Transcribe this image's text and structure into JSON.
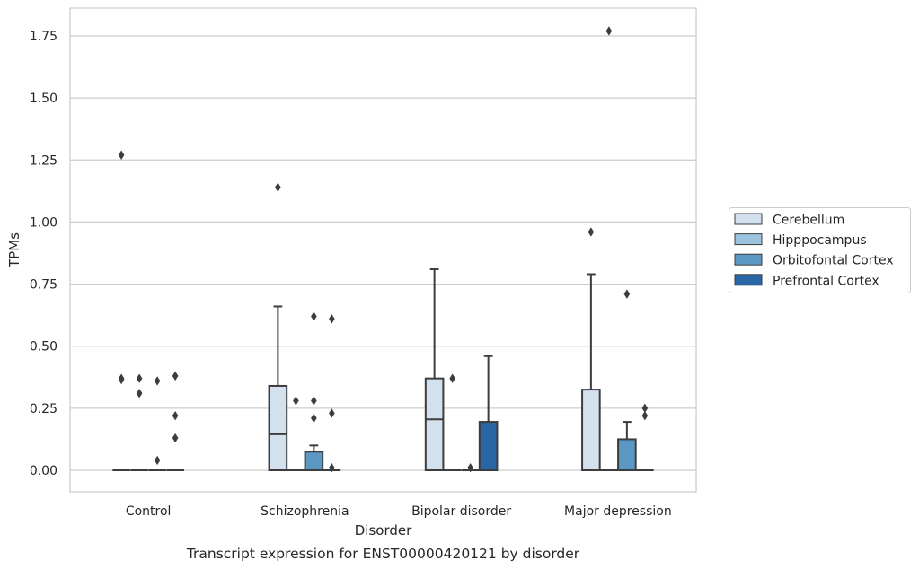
{
  "chart_data": {
    "type": "box",
    "title": "",
    "caption": "Transcript expression for ENST00000420121 by disorder",
    "xlabel": "Disorder",
    "ylabel": "TPMs",
    "ylim": [
      -0.085,
      1.86
    ],
    "yticks": [
      0.0,
      0.25,
      0.5,
      0.75,
      1.0,
      1.25,
      1.5,
      1.75
    ],
    "ytick_labels": [
      "0.00",
      "0.25",
      "0.50",
      "0.75",
      "1.00",
      "1.25",
      "1.50",
      "1.75"
    ],
    "grid": true,
    "legend_position": "right",
    "categories": [
      "Control",
      "Schizophrenia",
      "Bipolar disorder",
      "Major depression"
    ],
    "series": [
      {
        "name": "Cerebellum",
        "color": "#d3e1ef",
        "boxes": [
          {
            "min": 0,
            "q1": 0,
            "median": 0,
            "q3": 0,
            "max": 0,
            "outliers": [
              1.27,
              0.37,
              0.365
            ]
          },
          {
            "min": 0,
            "q1": 0,
            "median": 0.145,
            "q3": 0.34,
            "max": 0.66,
            "outliers": [
              1.14
            ]
          },
          {
            "min": 0,
            "q1": 0,
            "median": 0.205,
            "q3": 0.37,
            "max": 0.81,
            "outliers": []
          },
          {
            "min": 0,
            "q1": 0,
            "median": 0,
            "q3": 0.325,
            "max": 0.79,
            "outliers": [
              0.96
            ]
          }
        ]
      },
      {
        "name": "Hipppocampus",
        "color": "#9cc3de",
        "boxes": [
          {
            "min": 0,
            "q1": 0,
            "median": 0,
            "q3": 0,
            "max": 0,
            "outliers": [
              0.37,
              0.31
            ]
          },
          {
            "min": 0,
            "q1": 0,
            "median": 0,
            "q3": 0,
            "max": 0,
            "outliers": [
              0.28
            ]
          },
          {
            "min": 0,
            "q1": 0,
            "median": 0,
            "q3": 0,
            "max": 0,
            "outliers": [
              0.37
            ]
          },
          {
            "min": 0,
            "q1": 0,
            "median": 0,
            "q3": 0,
            "max": 0,
            "outliers": [
              1.77
            ]
          }
        ]
      },
      {
        "name": "Orbitofontal Cortex",
        "color": "#5a97c3",
        "boxes": [
          {
            "min": 0,
            "q1": 0,
            "median": 0,
            "q3": 0,
            "max": 0,
            "outliers": [
              0.36,
              0.04
            ]
          },
          {
            "min": 0,
            "q1": 0,
            "median": 0,
            "q3": 0.075,
            "max": 0.1,
            "outliers": [
              0.62,
              0.28,
              0.21
            ]
          },
          {
            "min": 0,
            "q1": 0,
            "median": 0,
            "q3": 0,
            "max": 0,
            "outliers": [
              0.01
            ]
          },
          {
            "min": 0,
            "q1": 0,
            "median": 0,
            "q3": 0.125,
            "max": 0.195,
            "outliers": [
              0.71
            ]
          }
        ]
      },
      {
        "name": "Prefrontal Cortex",
        "color": "#2866a6",
        "boxes": [
          {
            "min": 0,
            "q1": 0,
            "median": 0,
            "q3": 0,
            "max": 0,
            "outliers": [
              0.38,
              0.22,
              0.13
            ]
          },
          {
            "min": 0,
            "q1": 0,
            "median": 0,
            "q3": 0,
            "max": 0,
            "outliers": [
              0.61,
              0.23,
              0.01
            ]
          },
          {
            "min": 0,
            "q1": 0,
            "median": 0,
            "q3": 0.195,
            "max": 0.46,
            "outliers": []
          },
          {
            "min": 0,
            "q1": 0,
            "median": 0,
            "q3": 0,
            "max": 0,
            "outliers": [
              0.25,
              0.22
            ]
          }
        ]
      }
    ]
  }
}
